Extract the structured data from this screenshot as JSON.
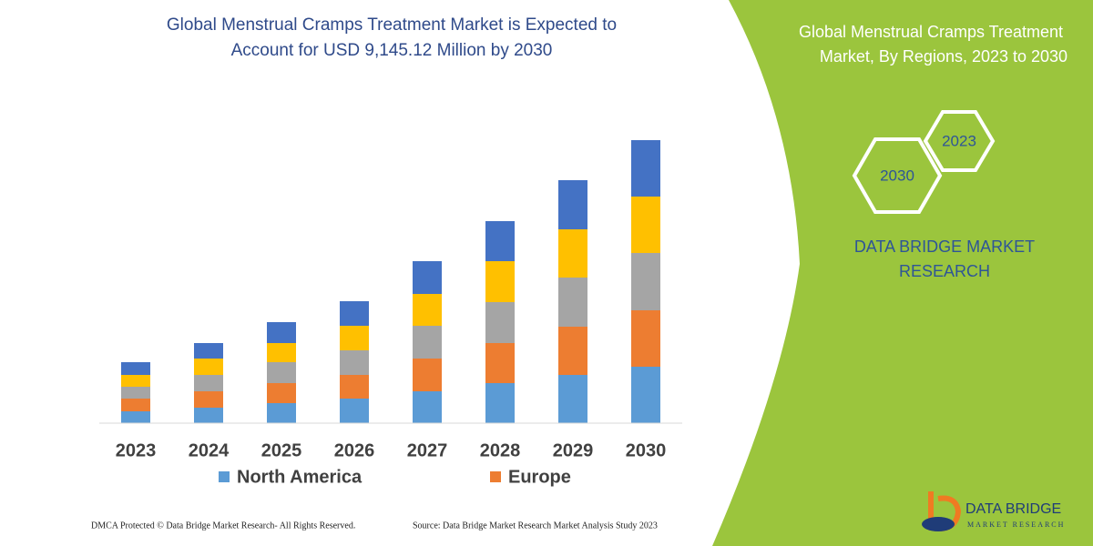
{
  "chart_data": {
    "type": "stacked-bar",
    "title": [
      "Global Menstrual Cramps Treatment Market is Expected to",
      "Account for USD 9,145.12 Million by 2030"
    ],
    "categories": [
      "2023",
      "2024",
      "2025",
      "2026",
      "2027",
      "2028",
      "2029",
      "2030"
    ],
    "series": [
      {
        "name": "North America",
        "color": "#5b9bd5",
        "values": [
          13,
          17,
          22,
          27,
          35,
          44,
          53,
          62
        ]
      },
      {
        "name": "Europe",
        "color": "#ed7d31",
        "values": [
          14,
          18,
          22,
          26,
          36,
          44,
          53,
          62
        ]
      },
      {
        "color": "#a5a5a5",
        "values": [
          13,
          18,
          23,
          27,
          36,
          45,
          54,
          63
        ]
      },
      {
        "color": "#ffc000",
        "values": [
          13,
          18,
          21,
          27,
          35,
          45,
          53,
          62
        ]
      },
      {
        "color": "#4472c4",
        "values": [
          14,
          17,
          23,
          27,
          36,
          44,
          54,
          62
        ]
      }
    ],
    "ylim": [
      0,
      320
    ],
    "grid": false
  },
  "panel": {
    "title": [
      "Global Menstrual Cramps Treatment",
      "Market, By Regions, 2023 to 2030"
    ],
    "hexagons": [
      "2023",
      "2030"
    ],
    "brand": [
      "DATA BRIDGE MARKET",
      "RESEARCH"
    ],
    "logo": [
      "DATA BRIDGE",
      "MARKET RESEARCH"
    ]
  },
  "footer": {
    "left": "DMCA Protected © Data Bridge Market Research-  All Rights Reserved.",
    "right": "Source: Data Bridge Market Research  Market Analysis Study 2023"
  }
}
